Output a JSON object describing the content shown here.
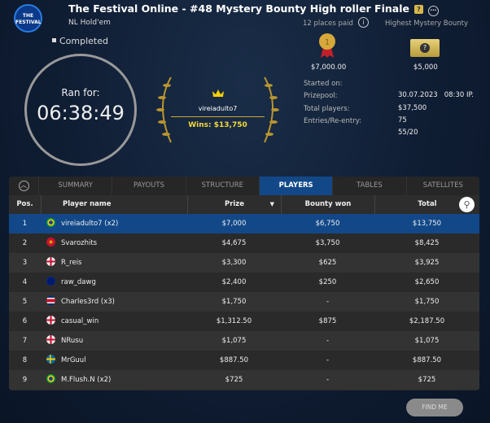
{
  "header": {
    "logo_text": "THE FESTIVAL",
    "title": "The Festival Online - #48 Mystery Bounty High roller Finale",
    "game": "NL Hold'em",
    "status": "Completed",
    "places_paid": "12 places paid",
    "highest_bounty_label": "Highest Mystery Bounty"
  },
  "clock": {
    "label": "Ran for:",
    "value": "06:38:49"
  },
  "winner": {
    "name": "vireiadulto7",
    "wins": "Wins: $13,750"
  },
  "prizes": {
    "first": "$7,000.00",
    "bounty": "$5,000"
  },
  "info": [
    {
      "label": "Started on:",
      "value": "30.07.2023   08:30 IP."
    },
    {
      "label": "Prizepool:",
      "value": "$37,500"
    },
    {
      "label": "Total players:",
      "value": "75"
    },
    {
      "label": "Entries/Re-entry:",
      "value": "55/20"
    }
  ],
  "tabs": [
    "SUMMARY",
    "PAYOUTS",
    "STRUCTURE",
    "PLAYERS",
    "TABLES",
    "SATELLITES"
  ],
  "columns": [
    "Pos.",
    "Player name",
    "Prize",
    "Bounty won",
    "Total"
  ],
  "rows": [
    [
      "1",
      "vireiadulto7 (x2)",
      "$7,000",
      "$6,750",
      "$13,750"
    ],
    [
      "2",
      "Svarozhits",
      "$4,675",
      "$3,750",
      "$8,425"
    ],
    [
      "3",
      "R_reis",
      "$3,300",
      "$625",
      "$3,925"
    ],
    [
      "4",
      "raw_dawg",
      "$2,400",
      "$250",
      "$2,650"
    ],
    [
      "5",
      "Charles3rd (x3)",
      "$1,750",
      "-",
      "$1,750"
    ],
    [
      "6",
      "casual_win",
      "$1,312.50",
      "$875",
      "$2,187.50"
    ],
    [
      "7",
      "NRusu",
      "$1,075",
      "-",
      "$1,075"
    ],
    [
      "8",
      "MrGuul",
      "$887.50",
      "-",
      "$887.50"
    ],
    [
      "9",
      "M.Flush.N (x2)",
      "$725",
      "-",
      "$725"
    ]
  ],
  "flags": [
    "brazil",
    "montenegro",
    "uk",
    "blue",
    "costa-rica",
    "uk",
    "uk",
    "sweden",
    "brazil"
  ],
  "find_me": "FIND ME",
  "colors": {
    "accent": "#124888",
    "gold": "#f4d93a"
  }
}
